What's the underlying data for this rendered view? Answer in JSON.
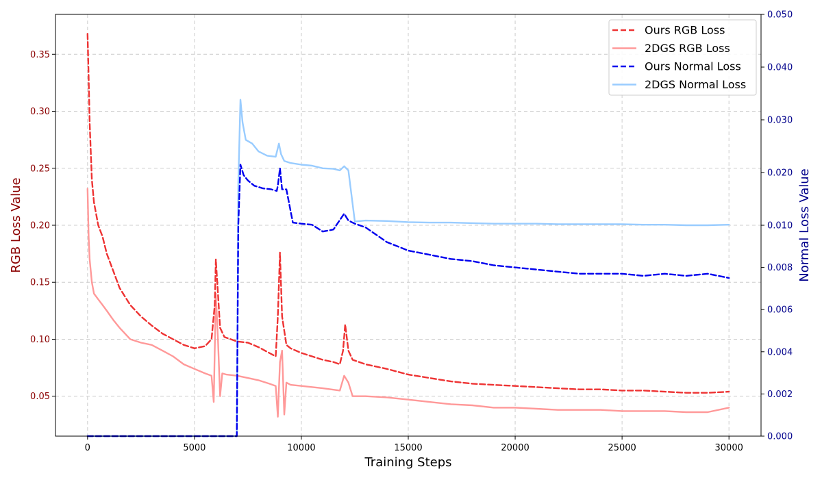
{
  "chart_data": {
    "type": "line",
    "title": "",
    "xlabel": "Training Steps",
    "ylabel_left": "RGB Loss Value",
    "ylabel_right": "Normal Loss Value",
    "xlim": [
      -1500,
      31500
    ],
    "ylim_left": [
      0.015,
      0.385
    ],
    "ylim_right": [
      0.0,
      0.05
    ],
    "x_ticks": [
      0,
      5000,
      10000,
      15000,
      20000,
      25000,
      30000
    ],
    "y_ticks_left": [
      0.05,
      0.1,
      0.15,
      0.2,
      0.25,
      0.3,
      0.35
    ],
    "y_ticks_right": [
      0.0,
      0.002,
      0.004,
      0.006,
      0.008,
      0.01,
      0.02,
      0.03,
      0.04,
      0.05
    ],
    "x_tick_labels": [
      "0",
      "5000",
      "10000",
      "15000",
      "20000",
      "25000",
      "30000"
    ],
    "y_tick_labels_left": [
      "0.05",
      "0.10",
      "0.15",
      "0.20",
      "0.25",
      "0.30",
      "0.35"
    ],
    "y_tick_labels_right": [
      "0.000",
      "0.002",
      "0.004",
      "0.006",
      "0.008",
      "0.010",
      "0.020",
      "0.030",
      "0.040",
      "0.050"
    ],
    "grid": true,
    "legend_position": "top-right",
    "series": [
      {
        "name": "Ours RGB Loss",
        "axis": "left",
        "style": "dashed",
        "color": "#ee3333",
        "x": [
          0,
          50,
          100,
          200,
          300,
          500,
          700,
          900,
          1200,
          1500,
          2000,
          2500,
          3000,
          3500,
          4000,
          4500,
          5000,
          5500,
          5800,
          5950,
          6000,
          6100,
          6200,
          6400,
          6700,
          7000,
          7500,
          8000,
          8500,
          8800,
          8900,
          9000,
          9100,
          9300,
          9500,
          10000,
          10500,
          11000,
          11500,
          11800,
          11950,
          12050,
          12200,
          12400,
          13000,
          14000,
          15000,
          16000,
          17000,
          18000,
          19000,
          20000,
          21000,
          22000,
          23000,
          24000,
          25000,
          26000,
          27000,
          28000,
          29000,
          30000
        ],
        "y": [
          0.368,
          0.33,
          0.29,
          0.24,
          0.22,
          0.2,
          0.19,
          0.175,
          0.16,
          0.145,
          0.13,
          0.12,
          0.112,
          0.105,
          0.1,
          0.095,
          0.092,
          0.094,
          0.1,
          0.13,
          0.17,
          0.14,
          0.11,
          0.102,
          0.1,
          0.098,
          0.097,
          0.093,
          0.088,
          0.085,
          0.12,
          0.176,
          0.12,
          0.095,
          0.092,
          0.088,
          0.085,
          0.082,
          0.08,
          0.078,
          0.09,
          0.113,
          0.09,
          0.082,
          0.078,
          0.074,
          0.069,
          0.066,
          0.063,
          0.061,
          0.06,
          0.059,
          0.058,
          0.057,
          0.056,
          0.056,
          0.055,
          0.055,
          0.054,
          0.053,
          0.053,
          0.054
        ]
      },
      {
        "name": "2DGS RGB Loss",
        "axis": "left",
        "style": "solid",
        "color": "#ff9999",
        "x": [
          0,
          50,
          100,
          200,
          300,
          500,
          700,
          900,
          1200,
          1500,
          2000,
          2500,
          3000,
          3500,
          4000,
          4500,
          5000,
          5500,
          5800,
          5900,
          5950,
          6000,
          6100,
          6200,
          6300,
          6500,
          7000,
          7500,
          8000,
          8500,
          8800,
          8900,
          9000,
          9100,
          9200,
          9300,
          9500,
          10000,
          11000,
          11800,
          12000,
          12200,
          12400,
          13000,
          14000,
          15000,
          16000,
          17000,
          18000,
          19000,
          20000,
          21000,
          22000,
          23000,
          24000,
          25000,
          26000,
          27000,
          28000,
          29000,
          30000
        ],
        "y": [
          0.232,
          0.19,
          0.17,
          0.15,
          0.14,
          0.135,
          0.13,
          0.125,
          0.117,
          0.11,
          0.1,
          0.097,
          0.095,
          0.09,
          0.085,
          0.078,
          0.074,
          0.07,
          0.068,
          0.045,
          0.09,
          0.14,
          0.1,
          0.05,
          0.07,
          0.069,
          0.068,
          0.066,
          0.064,
          0.061,
          0.059,
          0.032,
          0.08,
          0.09,
          0.034,
          0.062,
          0.06,
          0.059,
          0.057,
          0.055,
          0.068,
          0.062,
          0.05,
          0.05,
          0.049,
          0.047,
          0.045,
          0.043,
          0.042,
          0.04,
          0.04,
          0.039,
          0.038,
          0.038,
          0.038,
          0.037,
          0.037,
          0.037,
          0.036,
          0.036,
          0.04
        ]
      },
      {
        "name": "Ours Normal Loss",
        "axis": "right",
        "style": "dashed",
        "color": "#0000ee",
        "x": [
          0,
          6900,
          6980,
          7050,
          7150,
          7300,
          7500,
          7800,
          8200,
          8600,
          8850,
          8900,
          9000,
          9100,
          9300,
          9600,
          10000,
          10500,
          11000,
          11500,
          12000,
          12200,
          12500,
          13000,
          14000,
          15000,
          16000,
          17000,
          18000,
          19000,
          20000,
          21000,
          22000,
          23000,
          24000,
          25000,
          26000,
          27000,
          28000,
          29000,
          30000
        ],
        "y": [
          0.0,
          0.0,
          0.0,
          0.01,
          0.0215,
          0.0195,
          0.0185,
          0.0175,
          0.017,
          0.0168,
          0.0165,
          0.0175,
          0.0208,
          0.0168,
          0.0168,
          0.0105,
          0.0103,
          0.0101,
          0.0097,
          0.0098,
          0.0122,
          0.0109,
          0.0103,
          0.0099,
          0.0092,
          0.0088,
          0.0086,
          0.0084,
          0.0083,
          0.0081,
          0.008,
          0.0079,
          0.0078,
          0.0077,
          0.0077,
          0.0077,
          0.0076,
          0.0077,
          0.0076,
          0.0077,
          0.0075
        ]
      },
      {
        "name": "2DGS Normal Loss",
        "axis": "right",
        "style": "solid",
        "color": "#99ccff",
        "x": [
          0,
          6900,
          6980,
          7050,
          7150,
          7250,
          7400,
          7700,
          8000,
          8400,
          8800,
          8950,
          9050,
          9200,
          9500,
          10000,
          10500,
          11000,
          11500,
          11800,
          12000,
          12200,
          12500,
          13000,
          14000,
          15000,
          16000,
          17000,
          18000,
          19000,
          20000,
          21000,
          22000,
          23000,
          24000,
          25000,
          26000,
          27000,
          28000,
          29000,
          30000
        ],
        "y": [
          0.0,
          0.0,
          0.0,
          0.018,
          0.0338,
          0.0295,
          0.0262,
          0.0255,
          0.024,
          0.0232,
          0.023,
          0.0255,
          0.0235,
          0.0222,
          0.0218,
          0.0215,
          0.0213,
          0.0208,
          0.0207,
          0.0204,
          0.0212,
          0.0204,
          0.0107,
          0.0109,
          0.0108,
          0.0106,
          0.0105,
          0.0105,
          0.0104,
          0.0103,
          0.0103,
          0.0103,
          0.0102,
          0.0102,
          0.0102,
          0.0102,
          0.0101,
          0.0101,
          0.01,
          0.01,
          0.0101
        ]
      }
    ]
  }
}
